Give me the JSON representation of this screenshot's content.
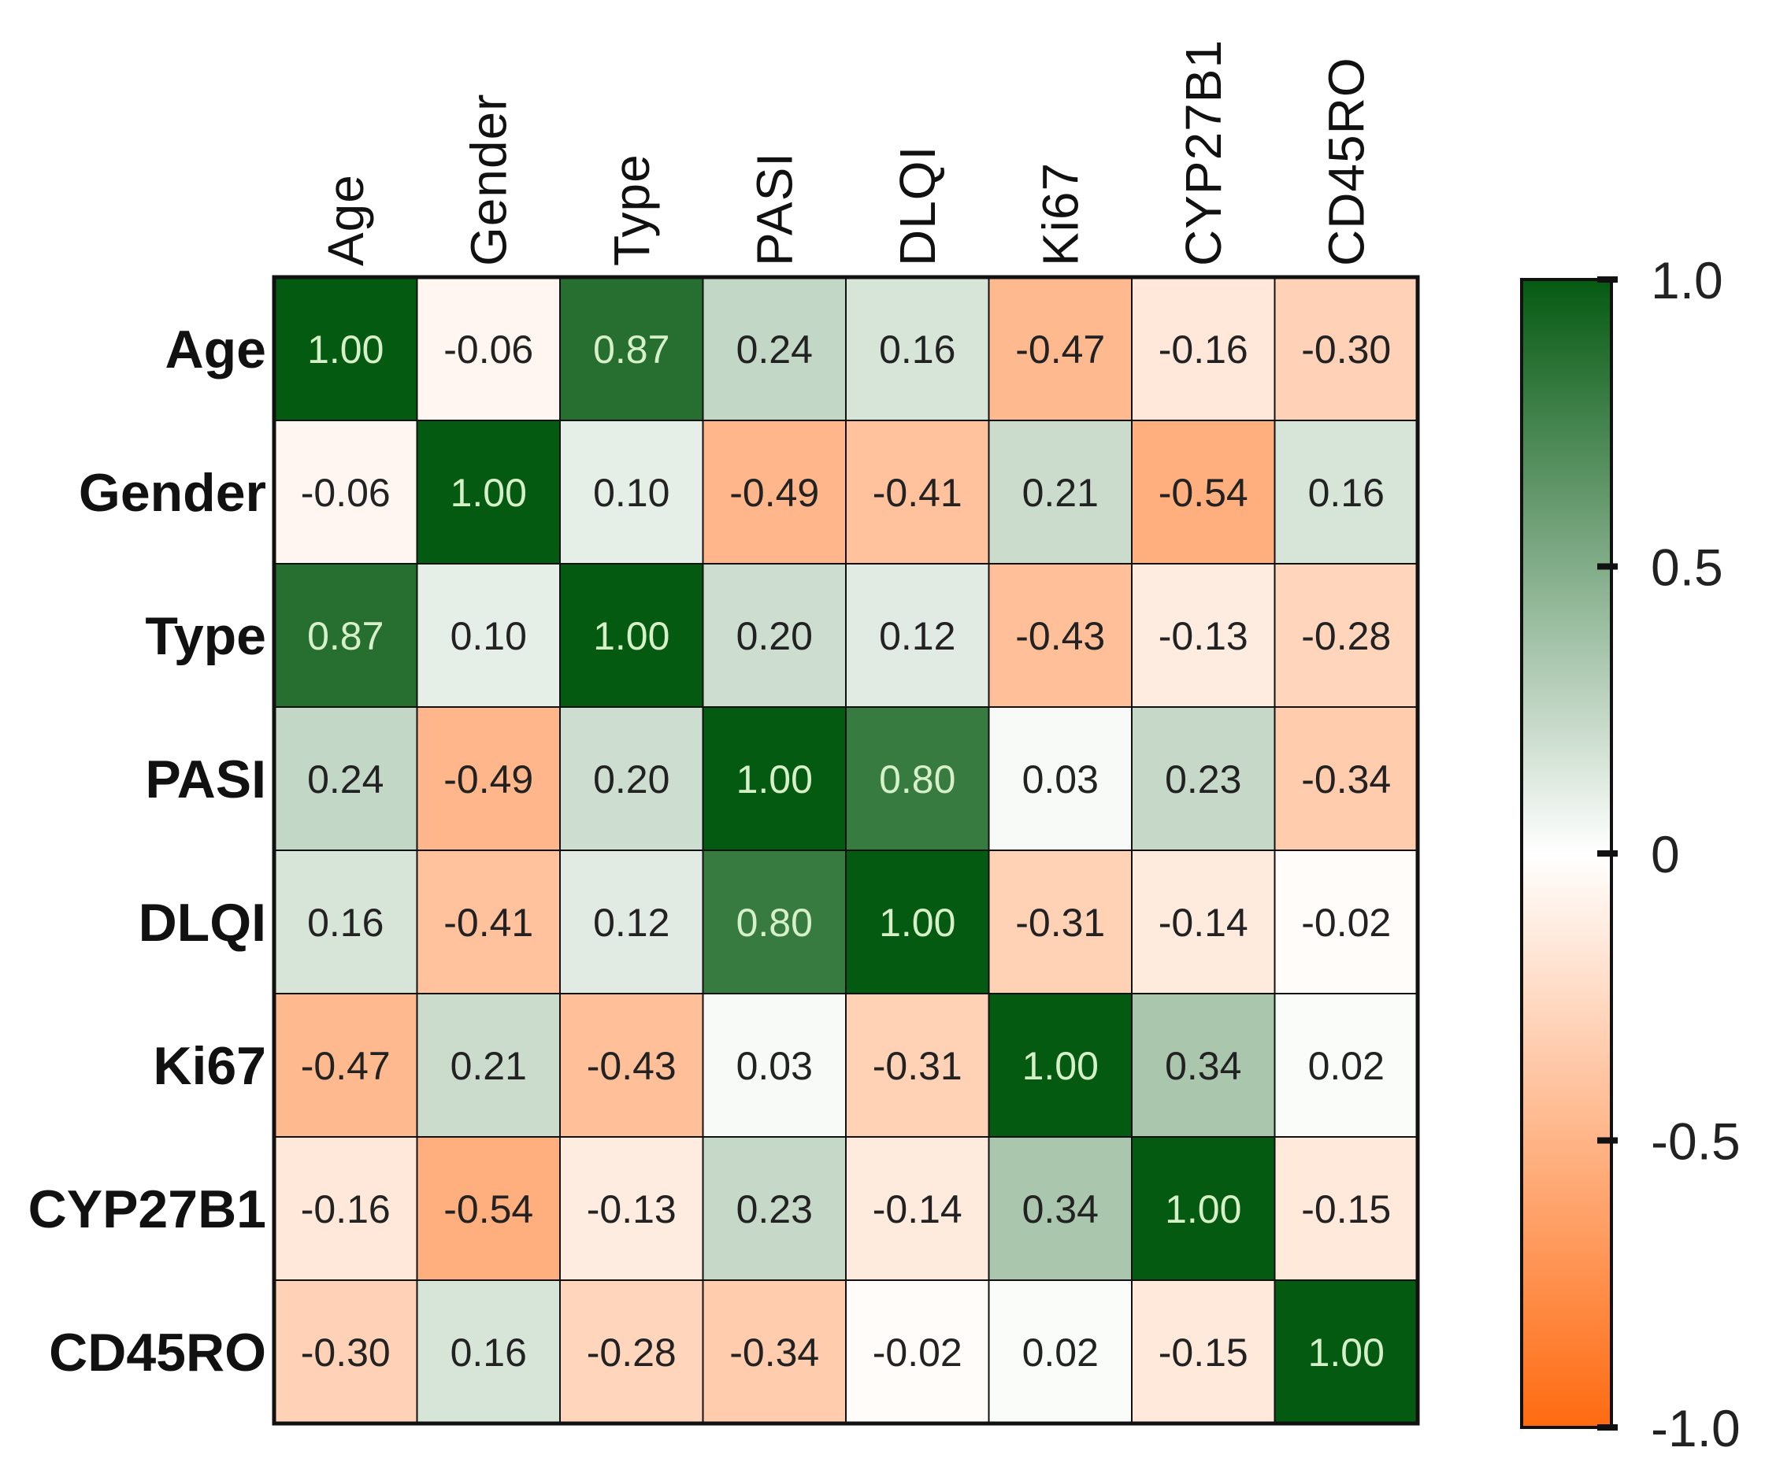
{
  "chart_data": {
    "type": "heatmap",
    "title": "",
    "row_labels": [
      "Age",
      "Gender",
      "Type",
      "PASI",
      "DLQI",
      "Ki67",
      "CYP27B1",
      "CD45RO"
    ],
    "column_labels": [
      "Age",
      "Gender",
      "Type",
      "PASI",
      "DLQI",
      "Ki67",
      "CYP27B1",
      "CD45RO"
    ],
    "values": [
      [
        1.0,
        -0.06,
        0.87,
        0.24,
        0.16,
        -0.47,
        -0.16,
        -0.3
      ],
      [
        -0.06,
        1.0,
        0.1,
        -0.49,
        -0.41,
        0.21,
        -0.54,
        0.16
      ],
      [
        0.87,
        0.1,
        1.0,
        0.2,
        0.12,
        -0.43,
        -0.13,
        -0.28
      ],
      [
        0.24,
        -0.49,
        0.2,
        1.0,
        0.8,
        0.03,
        0.23,
        -0.34
      ],
      [
        0.16,
        -0.41,
        0.12,
        0.8,
        1.0,
        -0.31,
        -0.14,
        -0.02
      ],
      [
        -0.47,
        0.21,
        -0.43,
        0.03,
        -0.31,
        1.0,
        0.34,
        0.02
      ],
      [
        -0.16,
        -0.54,
        -0.13,
        0.23,
        -0.14,
        0.34,
        1.0,
        -0.15
      ],
      [
        -0.3,
        0.16,
        -0.28,
        -0.34,
        -0.02,
        0.02,
        -0.15,
        1.0
      ]
    ],
    "value_format": "2 decimals",
    "color_scale": {
      "min": -1.0,
      "max": 1.0,
      "low_color": "#ff6a10",
      "mid_color": "#ffffff",
      "high_color": "#055a12",
      "tick_values": [
        1.0,
        0.5,
        0,
        -0.5,
        -1.0
      ],
      "tick_labels": [
        "1.0",
        "0.5",
        "0",
        "-0.5",
        "-1.0"
      ]
    },
    "legend_position": "right",
    "column_label_orientation": "vertical",
    "text_colors": {
      "dark_cell": "#d6f0c8",
      "light_cell": "#222222"
    }
  }
}
